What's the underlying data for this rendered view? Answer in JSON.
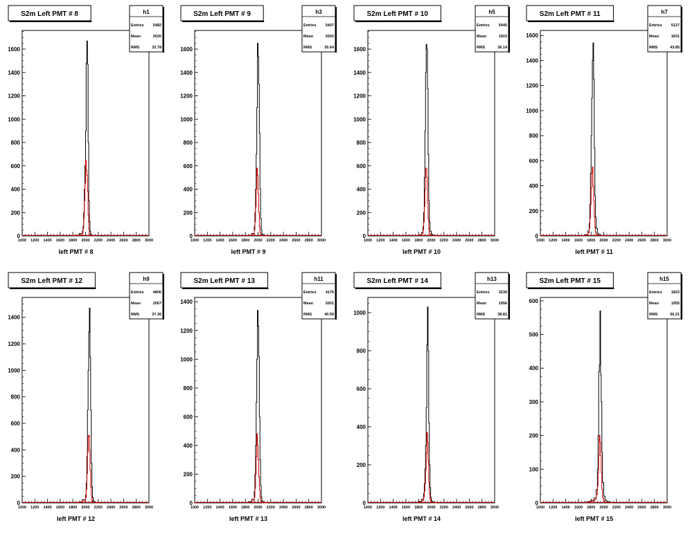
{
  "stat_labels": {
    "entries": "Entries",
    "mean": "Mean",
    "rms": "RMS"
  },
  "colors": {
    "frame": "#000000",
    "main_hist": "#000000",
    "overlay_hist": "#cc0000",
    "background": "#ffffff"
  },
  "chart_data": [
    {
      "type": "histogram",
      "title": "S2m Left PMT # 8",
      "hist_name": "h1",
      "stats": {
        "entries": "5482",
        "mean": "2020",
        "rms": "32.78"
      },
      "xlabel": "left PMT # 8",
      "ylabel": "",
      "xlim": [
        1000,
        3000
      ],
      "ylim": [
        0,
        1760
      ],
      "x_ticks": [
        1000,
        1200,
        1400,
        1600,
        1800,
        2000,
        2200,
        2400,
        2600,
        2800,
        3000
      ],
      "y_ticks": [
        0,
        200,
        400,
        600,
        800,
        1000,
        1200,
        1400,
        1600
      ],
      "bin_edges": [
        1800,
        1850,
        1900,
        1950,
        1960,
        1970,
        1980,
        1990,
        2000,
        2010,
        2020,
        2030,
        2040,
        2050,
        2060,
        2070,
        2080,
        2100,
        2150
      ],
      "series": [
        {
          "name": "main",
          "values": [
            3,
            5,
            20,
            40,
            80,
            200,
            400,
            600,
            900,
            1480,
            1670,
            1470,
            800,
            300,
            120,
            40,
            10,
            2
          ]
        },
        {
          "name": "overlay",
          "values": [
            2,
            4,
            10,
            25,
            60,
            150,
            300,
            450,
            650,
            560,
            520,
            380,
            180,
            60,
            20,
            5,
            2,
            1
          ]
        }
      ],
      "grid": false
    },
    {
      "type": "histogram",
      "title": "S2m Left PMT # 9",
      "hist_name": "h3",
      "stats": {
        "entries": "5407",
        "mean": "2002",
        "rms": "35.64"
      },
      "xlabel": "left PMT # 9",
      "ylabel": "",
      "xlim": [
        1000,
        3000
      ],
      "ylim": [
        0,
        1760
      ],
      "x_ticks": [
        1000,
        1200,
        1400,
        1600,
        1800,
        2000,
        2200,
        2400,
        2600,
        2800,
        3000
      ],
      "y_ticks": [
        0,
        200,
        400,
        600,
        800,
        1000,
        1200,
        1400,
        1600
      ],
      "bin_edges": [
        1800,
        1850,
        1900,
        1940,
        1950,
        1960,
        1970,
        1980,
        1990,
        2000,
        2010,
        2020,
        2030,
        2040,
        2050,
        2060,
        2080,
        2100,
        2150
      ],
      "series": [
        {
          "name": "main",
          "values": [
            3,
            6,
            20,
            80,
            200,
            400,
            700,
            1100,
            1650,
            1540,
            1300,
            880,
            400,
            150,
            50,
            15,
            5,
            2
          ]
        },
        {
          "name": "overlay",
          "values": [
            2,
            4,
            15,
            50,
            120,
            250,
            400,
            580,
            520,
            360,
            200,
            80,
            30,
            10,
            4,
            2,
            1,
            0
          ]
        }
      ],
      "grid": false
    },
    {
      "type": "histogram",
      "title": "S2m Left PMT # 10",
      "hist_name": "h5",
      "stats": {
        "entries": "5445",
        "mean": "1923",
        "rms": "36.14"
      },
      "xlabel": "left PMT # 10",
      "ylabel": "",
      "xlim": [
        1000,
        3000
      ],
      "ylim": [
        0,
        1760
      ],
      "x_ticks": [
        1000,
        1200,
        1400,
        1600,
        1800,
        2000,
        2200,
        2400,
        2600,
        2800,
        3000
      ],
      "y_ticks": [
        0,
        200,
        400,
        600,
        800,
        1000,
        1200,
        1400,
        1600
      ],
      "bin_edges": [
        1750,
        1800,
        1850,
        1870,
        1880,
        1890,
        1900,
        1910,
        1920,
        1930,
        1940,
        1950,
        1960,
        1970,
        1980,
        2000,
        2020,
        2050,
        2100
      ],
      "series": [
        {
          "name": "main",
          "values": [
            3,
            8,
            30,
            80,
            200,
            500,
            900,
            1400,
            1640,
            1600,
            1260,
            700,
            300,
            120,
            40,
            15,
            5,
            2
          ]
        },
        {
          "name": "overlay",
          "values": [
            2,
            5,
            20,
            50,
            120,
            250,
            400,
            580,
            580,
            500,
            280,
            150,
            60,
            20,
            8,
            3,
            1,
            0
          ]
        }
      ],
      "grid": false
    },
    {
      "type": "histogram",
      "title": "S2m Left PMT # 11",
      "hist_name": "h7",
      "stats": {
        "entries": "5127",
        "mean": "1831",
        "rms": "43.85"
      },
      "xlabel": "left PMT # 11",
      "ylabel": "",
      "xlim": [
        1000,
        3000
      ],
      "ylim": [
        0,
        1640
      ],
      "x_ticks": [
        1000,
        1200,
        1400,
        1600,
        1800,
        2000,
        2200,
        2400,
        2600,
        2800,
        3000
      ],
      "y_ticks": [
        0,
        200,
        400,
        600,
        800,
        1000,
        1200,
        1400,
        1600
      ],
      "bin_edges": [
        1650,
        1700,
        1750,
        1770,
        1780,
        1790,
        1800,
        1810,
        1820,
        1830,
        1840,
        1850,
        1860,
        1870,
        1880,
        1900,
        1920,
        1950,
        2000
      ],
      "series": [
        {
          "name": "main",
          "values": [
            3,
            10,
            40,
            100,
            250,
            500,
            800,
            1100,
            1400,
            1540,
            1250,
            700,
            320,
            150,
            60,
            20,
            8,
            3
          ]
        },
        {
          "name": "overlay",
          "values": [
            2,
            6,
            25,
            60,
            140,
            250,
            380,
            500,
            550,
            400,
            280,
            150,
            70,
            30,
            10,
            4,
            2,
            1
          ]
        }
      ],
      "grid": false
    },
    {
      "type": "histogram",
      "title": "S2m Left PMT # 12",
      "hist_name": "h9",
      "stats": {
        "entries": "4806",
        "mean": "2067",
        "rms": "37.36"
      },
      "xlabel": "left PMT # 12",
      "ylabel": "",
      "xlim": [
        1000,
        3000
      ],
      "ylim": [
        0,
        1550
      ],
      "x_ticks": [
        1000,
        1200,
        1400,
        1600,
        1800,
        2000,
        2200,
        2400,
        2600,
        2800,
        3000
      ],
      "y_ticks": [
        0,
        200,
        400,
        600,
        800,
        1000,
        1200,
        1400
      ],
      "bin_edges": [
        1850,
        1900,
        1950,
        2000,
        2010,
        2020,
        2030,
        2040,
        2050,
        2060,
        2070,
        2080,
        2090,
        2100,
        2110,
        2120,
        2140,
        2170,
        2220
      ],
      "series": [
        {
          "name": "main",
          "values": [
            3,
            8,
            25,
            60,
            150,
            350,
            700,
            1000,
            1290,
            1470,
            1100,
            700,
            300,
            120,
            40,
            12,
            4,
            1
          ]
        },
        {
          "name": "overlay",
          "values": [
            2,
            5,
            15,
            40,
            100,
            220,
            380,
            500,
            510,
            400,
            250,
            120,
            50,
            20,
            6,
            2,
            1,
            0
          ]
        }
      ],
      "grid": false
    },
    {
      "type": "histogram",
      "title": "S2m Left PMT # 13",
      "hist_name": "h11",
      "stats": {
        "entries": "4175",
        "mean": "2001",
        "rms": "40.59"
      },
      "xlabel": "left PMT # 13",
      "ylabel": "",
      "xlim": [
        1000,
        3000
      ],
      "ylim": [
        0,
        1430
      ],
      "x_ticks": [
        1000,
        1200,
        1400,
        1600,
        1800,
        2000,
        2200,
        2400,
        2600,
        2800,
        3000
      ],
      "y_ticks": [
        0,
        200,
        400,
        600,
        800,
        1000,
        1200,
        1400
      ],
      "bin_edges": [
        1800,
        1850,
        1900,
        1940,
        1950,
        1960,
        1970,
        1980,
        1990,
        2000,
        2010,
        2020,
        2030,
        2040,
        2050,
        2060,
        2080,
        2100,
        2150
      ],
      "series": [
        {
          "name": "main",
          "values": [
            3,
            8,
            25,
            80,
            200,
            400,
            700,
            1000,
            1340,
            1230,
            1020,
            600,
            300,
            120,
            40,
            12,
            4,
            1
          ]
        },
        {
          "name": "overlay",
          "values": [
            2,
            5,
            15,
            40,
            100,
            200,
            320,
            480,
            400,
            300,
            180,
            90,
            40,
            15,
            5,
            2,
            1,
            0
          ]
        }
      ],
      "grid": false
    },
    {
      "type": "histogram",
      "title": "S2m Left PMT # 14",
      "hist_name": "h13",
      "stats": {
        "entries": "3239",
        "mean": "1956",
        "rms": "38.81"
      },
      "xlabel": "left PMT # 14",
      "ylabel": "",
      "xlim": [
        1000,
        3000
      ],
      "ylim": [
        0,
        1080
      ],
      "x_ticks": [
        1000,
        1200,
        1400,
        1600,
        1800,
        2000,
        2200,
        2400,
        2600,
        2800,
        3000
      ],
      "y_ticks": [
        0,
        200,
        400,
        600,
        800,
        1000
      ],
      "bin_edges": [
        1750,
        1800,
        1850,
        1880,
        1890,
        1900,
        1910,
        1920,
        1930,
        1940,
        1950,
        1960,
        1970,
        1980,
        1990,
        2000,
        2020,
        2050,
        2100
      ],
      "series": [
        {
          "name": "main",
          "values": [
            3,
            8,
            20,
            50,
            100,
            180,
            300,
            500,
            830,
            1030,
            800,
            420,
            200,
            80,
            30,
            10,
            4,
            1
          ]
        },
        {
          "name": "overlay",
          "values": [
            2,
            5,
            12,
            30,
            60,
            100,
            170,
            260,
            370,
            320,
            220,
            110,
            50,
            20,
            8,
            3,
            1,
            0
          ]
        }
      ],
      "grid": false
    },
    {
      "type": "histogram",
      "title": "S2m Left PMT # 15",
      "hist_name": "h15",
      "stats": {
        "entries": "1823",
        "mean": "1955",
        "rms": "50.21"
      },
      "xlabel": "left PMT # 15",
      "ylabel": "",
      "xlim": [
        1000,
        3000
      ],
      "ylim": [
        0,
        610
      ],
      "x_ticks": [
        1000,
        1200,
        1400,
        1600,
        1800,
        2000,
        2200,
        2400,
        2600,
        2800,
        3000
      ],
      "y_ticks": [
        0,
        100,
        200,
        300,
        400,
        500,
        600
      ],
      "bin_edges": [
        1700,
        1750,
        1800,
        1850,
        1880,
        1900,
        1910,
        1920,
        1930,
        1940,
        1950,
        1960,
        1970,
        1980,
        2000,
        2020,
        2050,
        2100,
        2150
      ],
      "series": [
        {
          "name": "main",
          "values": [
            2,
            4,
            8,
            15,
            40,
            100,
            200,
            390,
            410,
            570,
            380,
            300,
            150,
            60,
            20,
            8,
            3,
            1
          ]
        },
        {
          "name": "overlay",
          "values": [
            1,
            3,
            5,
            10,
            25,
            50,
            90,
            140,
            200,
            180,
            140,
            90,
            40,
            15,
            5,
            2,
            1,
            0
          ]
        }
      ],
      "grid": false
    }
  ]
}
